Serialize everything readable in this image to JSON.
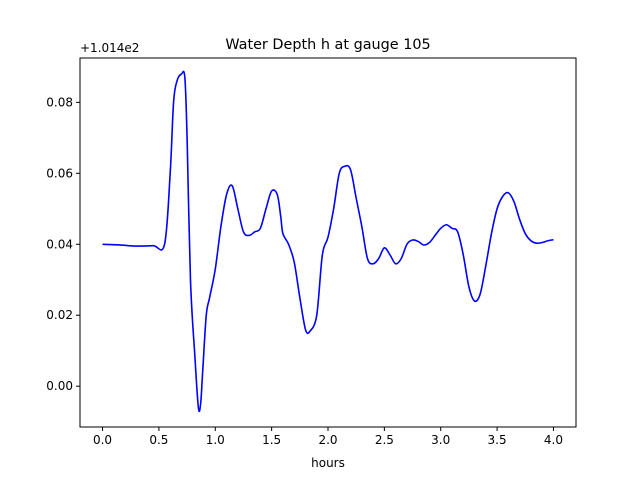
{
  "chart_data": {
    "type": "line",
    "title": "Water Depth h at gauge 105",
    "xlabel": "hours",
    "ylabel": "",
    "y_offset_label": "+1.014e2",
    "xlim": [
      -0.2,
      4.2
    ],
    "ylim": [
      -0.0115,
      0.0925
    ],
    "x_ticks": [
      0.0,
      0.5,
      1.0,
      1.5,
      2.0,
      2.5,
      3.0,
      3.5,
      4.0
    ],
    "x_tick_labels": [
      "0.0",
      "0.5",
      "1.0",
      "1.5",
      "2.0",
      "2.5",
      "3.0",
      "3.5",
      "4.0"
    ],
    "y_ticks": [
      0.0,
      0.02,
      0.04,
      0.06,
      0.08
    ],
    "y_tick_labels": [
      "0.00",
      "0.02",
      "0.04",
      "0.06",
      "0.08"
    ],
    "grid": false,
    "series": [
      {
        "color": "#0000ff",
        "x": [
          0.0,
          0.15,
          0.3,
          0.45,
          0.55,
          0.6,
          0.63,
          0.66,
          0.7,
          0.73,
          0.75,
          0.78,
          0.82,
          0.85,
          0.87,
          0.89,
          0.92,
          0.95,
          1.0,
          1.05,
          1.1,
          1.15,
          1.2,
          1.25,
          1.3,
          1.35,
          1.4,
          1.45,
          1.5,
          1.55,
          1.58,
          1.6,
          1.65,
          1.7,
          1.75,
          1.8,
          1.84,
          1.9,
          1.95,
          2.0,
          2.05,
          2.1,
          2.15,
          2.2,
          2.25,
          2.3,
          2.35,
          2.4,
          2.45,
          2.5,
          2.55,
          2.6,
          2.65,
          2.7,
          2.75,
          2.8,
          2.85,
          2.9,
          2.95,
          3.0,
          3.05,
          3.1,
          3.15,
          3.2,
          3.25,
          3.3,
          3.35,
          3.4,
          3.45,
          3.5,
          3.55,
          3.6,
          3.65,
          3.7,
          3.75,
          3.8,
          3.85,
          3.9,
          3.95,
          4.0
        ],
        "y": [
          0.04,
          0.0398,
          0.0395,
          0.0396,
          0.04,
          0.06,
          0.08,
          0.086,
          0.088,
          0.087,
          0.07,
          0.03,
          0.008,
          -0.006,
          -0.005,
          0.005,
          0.02,
          0.025,
          0.033,
          0.045,
          0.054,
          0.0565,
          0.05,
          0.0435,
          0.0425,
          0.0435,
          0.0445,
          0.05,
          0.055,
          0.054,
          0.048,
          0.043,
          0.04,
          0.035,
          0.025,
          0.016,
          0.0155,
          0.02,
          0.037,
          0.042,
          0.05,
          0.06,
          0.062,
          0.061,
          0.053,
          0.045,
          0.036,
          0.0345,
          0.036,
          0.039,
          0.037,
          0.0345,
          0.036,
          0.04,
          0.0412,
          0.0408,
          0.0398,
          0.0405,
          0.0425,
          0.0445,
          0.0455,
          0.0445,
          0.0435,
          0.037,
          0.028,
          0.024,
          0.026,
          0.034,
          0.043,
          0.05,
          0.0535,
          0.0545,
          0.052,
          0.047,
          0.043,
          0.041,
          0.0403,
          0.0405,
          0.041,
          0.0413
        ]
      }
    ]
  }
}
